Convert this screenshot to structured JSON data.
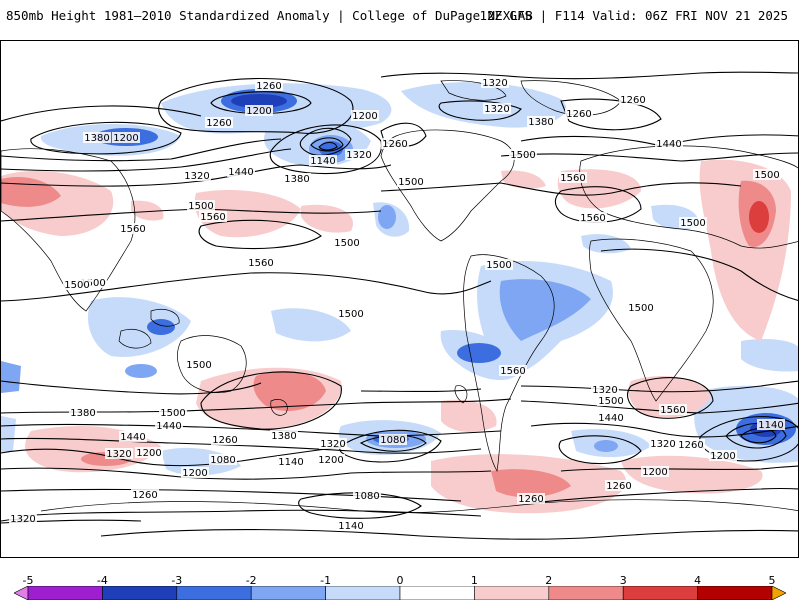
{
  "header": {
    "title_left": "850mb Height 1981–2010 Standardized Anomaly | College of DuPage NEXLAB",
    "title_right": "12Z GFS | F114 Valid: 06Z FRI NOV 21 2025"
  },
  "colorbar": {
    "tick_labels": [
      "-5",
      "-4",
      "-3",
      "-2",
      "-1",
      "0",
      "1",
      "2",
      "3",
      "4",
      "5"
    ],
    "colors": [
      "#e27fe6",
      "#9e1fcf",
      "#1f3fb8",
      "#3c6ee0",
      "#7ea6f2",
      "#c6dbfa",
      "#ffffff",
      "#f8cccc",
      "#ef8a8a",
      "#dc3d3d",
      "#b30000",
      "#f4a200"
    ]
  },
  "contour_labels": [
    "1260",
    "1320",
    "1260",
    "1200",
    "1260",
    "1380",
    "1200",
    "1320",
    "1440",
    "1380",
    "1140",
    "1200",
    "1260",
    "1320",
    "1320",
    "1260",
    "1380",
    "1440",
    "1500",
    "1500",
    "1560",
    "1500",
    "1560",
    "1560",
    "1500",
    "1500",
    "1560",
    "1500",
    "1500",
    "1500",
    "1560",
    "1500",
    "1500",
    "1500",
    "1560",
    "1500",
    "1380",
    "1440",
    "1500",
    "1320",
    "1440",
    "1260",
    "1380",
    "1320",
    "1080",
    "1200",
    "1140",
    "1080",
    "1200",
    "1260",
    "1200",
    "1140",
    "1080",
    "1320",
    "1500",
    "1440",
    "1320",
    "1260",
    "1200",
    "1140",
    "1560",
    "1200",
    "1260",
    "1260",
    "1320"
  ],
  "colors": {
    "negative_light": "#c6dbfa",
    "negative_mid": "#7ea6f2",
    "negative_strong": "#3c6ee0",
    "negative_deep": "#1f3fb8",
    "positive_light": "#f8cccc",
    "positive_mid": "#ef8a8a",
    "positive_strong": "#dc3d3d",
    "positive_deep": "#b30000"
  }
}
